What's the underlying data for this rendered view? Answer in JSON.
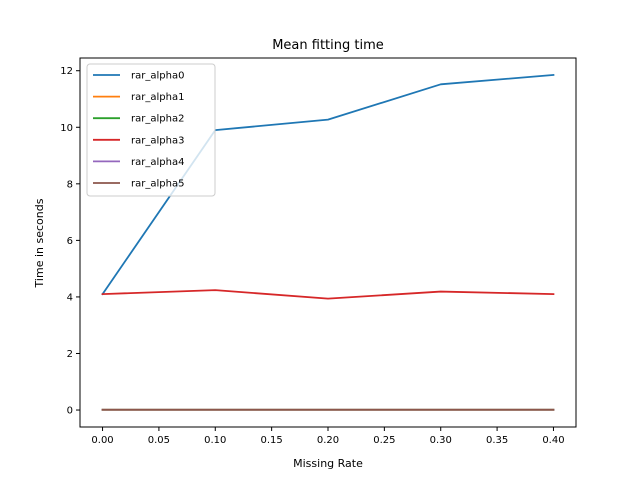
{
  "chart_data": {
    "type": "line",
    "title": "Mean fitting time",
    "xlabel": "Missing Rate",
    "ylabel": "Time in seconds",
    "xlim": [
      -0.02,
      0.42
    ],
    "ylim": [
      -0.6,
      12.45
    ],
    "x": [
      0.0,
      0.1,
      0.2,
      0.3,
      0.4
    ],
    "x_ticks": [
      0.0,
      0.05,
      0.1,
      0.15,
      0.2,
      0.25,
      0.3,
      0.35,
      0.4
    ],
    "x_tick_labels": [
      "0.00",
      "0.05",
      "0.10",
      "0.15",
      "0.20",
      "0.25",
      "0.30",
      "0.35",
      "0.40"
    ],
    "y_ticks": [
      0,
      2,
      4,
      6,
      8,
      10,
      12
    ],
    "y_tick_labels": [
      "0",
      "2",
      "4",
      "6",
      "8",
      "10",
      "12"
    ],
    "grid": false,
    "legend_position": "top-left",
    "series": [
      {
        "name": "rar_alpha0",
        "color": "#1f77b4",
        "values": [
          4.1,
          9.9,
          10.27,
          11.52,
          11.85
        ]
      },
      {
        "name": "rar_alpha1",
        "color": "#ff7f0e",
        "values": [
          0.01,
          0.01,
          0.01,
          0.01,
          0.01
        ]
      },
      {
        "name": "rar_alpha2",
        "color": "#2ca02c",
        "values": [
          0.01,
          0.01,
          0.01,
          0.01,
          0.01
        ]
      },
      {
        "name": "rar_alpha3",
        "color": "#d62728",
        "values": [
          4.1,
          4.24,
          3.94,
          4.19,
          4.1
        ]
      },
      {
        "name": "rar_alpha4",
        "color": "#9467bd",
        "values": [
          0.01,
          0.01,
          0.01,
          0.01,
          0.01
        ]
      },
      {
        "name": "rar_alpha5",
        "color": "#8c564b",
        "values": [
          0.01,
          0.01,
          0.01,
          0.01,
          0.01
        ]
      }
    ]
  }
}
